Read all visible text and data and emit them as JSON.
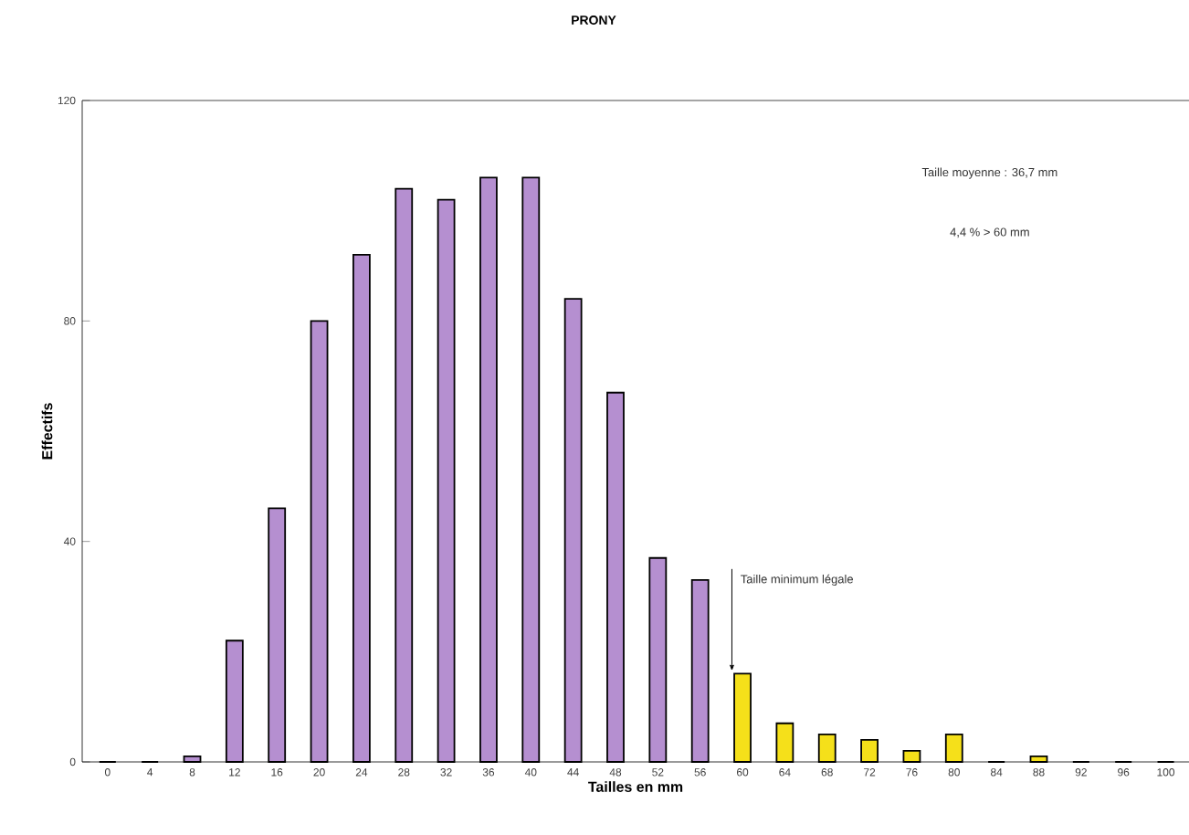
{
  "chart_data": {
    "type": "bar",
    "title": "PRONY",
    "xlabel": "Tailles en mm",
    "ylabel": "Effectifs",
    "categories": [
      "0",
      "4",
      "8",
      "12",
      "16",
      "20",
      "24",
      "28",
      "32",
      "36",
      "40",
      "44",
      "48",
      "52",
      "56",
      "60",
      "64",
      "68",
      "72",
      "76",
      "80",
      "84",
      "88",
      "92",
      "96",
      "100"
    ],
    "values": [
      0,
      0,
      1,
      22,
      46,
      80,
      92,
      104,
      102,
      106,
      106,
      84,
      67,
      37,
      33,
      16,
      7,
      5,
      4,
      2,
      5,
      0,
      1,
      0,
      0,
      0
    ],
    "colors": [
      "#b58fd0",
      "#b58fd0",
      "#b58fd0",
      "#b58fd0",
      "#b58fd0",
      "#b58fd0",
      "#b58fd0",
      "#b58fd0",
      "#b58fd0",
      "#b58fd0",
      "#b58fd0",
      "#b58fd0",
      "#b58fd0",
      "#b58fd0",
      "#b58fd0",
      "#f5e01a",
      "#f5e01a",
      "#f5e01a",
      "#f5e01a",
      "#f5e01a",
      "#f5e01a",
      "#f5e01a",
      "#f5e01a",
      "#f5e01a",
      "#f5e01a",
      "#f5e01a"
    ],
    "ylim": [
      0,
      120
    ],
    "yticks": [
      0,
      40,
      80,
      120
    ],
    "annotations": [
      "Taille moyenne : 36,7 mm",
      "4,4 % > 60 mm",
      {
        "text": "Taille minimum légale",
        "x": "60",
        "y": 16
      }
    ]
  }
}
